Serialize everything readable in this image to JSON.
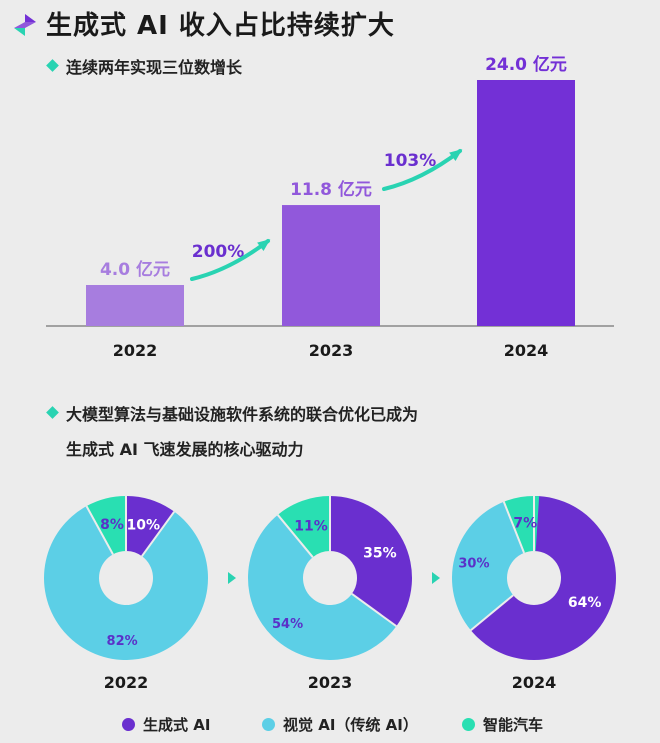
{
  "header": {
    "title": "生成式 AI 收入占比持续扩大",
    "subtitle1": "连续两年实现三位数增长",
    "subtitle2_line1": "大模型算法与基础设施软件系统的联合优化已成为",
    "subtitle2_line2": "生成式 AI 飞速发展的核心驱动力"
  },
  "colors": {
    "purple_2022": "#a77ddf",
    "purple_2023": "#9158db",
    "purple_2024": "#7330d6",
    "gen_ai": "#6a2fcf",
    "vision_ai": "#5ccfe6",
    "auto": "#29dfb2",
    "accent_green": "#29d3b2"
  },
  "chart_data": [
    {
      "type": "bar",
      "categories": [
        "2022",
        "2023",
        "2024"
      ],
      "values": [
        4.0,
        11.8,
        24.0
      ],
      "value_labels": [
        "4.0 亿元",
        "11.8 亿元",
        "24.0 亿元"
      ],
      "growth_labels": [
        "200%",
        "103%"
      ],
      "ylim": [
        0,
        24.0
      ],
      "title": "",
      "xlabel": "",
      "ylabel": ""
    },
    {
      "type": "pie",
      "donut": true,
      "categories": [
        "2022",
        "2023",
        "2024"
      ],
      "series": [
        {
          "name": "生成式 AI",
          "values": [
            10,
            35,
            64
          ]
        },
        {
          "name": "视觉 AI（传统 AI）",
          "values": [
            82,
            54,
            30
          ]
        },
        {
          "name": "智能汽车",
          "values": [
            8,
            11,
            7
          ]
        }
      ],
      "value_labels": [
        [
          "10%",
          "82%",
          "8%"
        ],
        [
          "35%",
          "54%",
          "11%"
        ],
        [
          "64%",
          "30%",
          "7%"
        ]
      ],
      "legend": "bottom"
    }
  ],
  "legend": {
    "items": [
      "生成式 AI",
      "视觉 AI（传统 AI）",
      "智能汽车"
    ]
  }
}
